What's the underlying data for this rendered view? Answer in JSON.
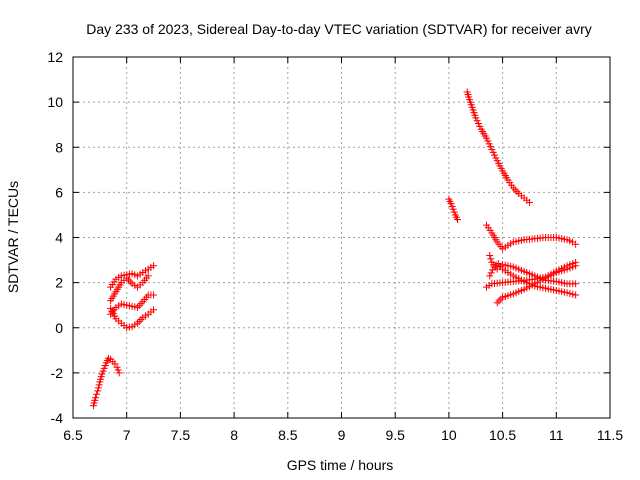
{
  "chart_data": {
    "type": "scatter",
    "title": "Day 233 of 2023, Sidereal Day-to-day VTEC variation (SDTVAR) for receiver avry",
    "xlabel": "GPS time / hours",
    "ylabel": "SDTVAR / TECUs",
    "xlim": [
      6.5,
      11.5
    ],
    "ylim": [
      -4,
      12
    ],
    "xticks": [
      6.5,
      7,
      7.5,
      8,
      8.5,
      9,
      9.5,
      10,
      10.5,
      11,
      11.5
    ],
    "xtick_labels": [
      "6.5",
      "7",
      "7.5",
      "8",
      "8.5",
      "9",
      "9.5",
      "10",
      "10.5",
      "11",
      "11.5"
    ],
    "yticks": [
      -4,
      -2,
      0,
      2,
      4,
      6,
      8,
      10,
      12
    ],
    "ytick_labels": [
      "-4",
      "-2",
      "0",
      "2",
      "4",
      "6",
      "8",
      "10",
      "12"
    ],
    "grid": true,
    "marker": "plus",
    "marker_color": "#ff0000",
    "segments": [
      {
        "x": [
          6.69,
          6.71,
          6.73,
          6.75,
          6.77,
          6.79,
          6.81,
          6.83,
          6.85,
          6.87,
          6.89,
          6.91,
          6.93
        ],
        "y": [
          -3.45,
          -3.1,
          -2.8,
          -2.4,
          -2.05,
          -1.8,
          -1.55,
          -1.35,
          -1.4,
          -1.5,
          -1.6,
          -1.75,
          -2.0
        ]
      },
      {
        "x": [
          6.85,
          6.9,
          6.95,
          7.0,
          7.05,
          7.1,
          7.15,
          7.2,
          7.25
        ],
        "y": [
          1.8,
          2.15,
          2.3,
          2.35,
          2.4,
          2.3,
          2.45,
          2.6,
          2.75
        ]
      },
      {
        "x": [
          6.85,
          6.9,
          6.95,
          7.0,
          7.05,
          7.1,
          7.15,
          7.2
        ],
        "y": [
          1.2,
          1.6,
          2.0,
          2.2,
          1.95,
          1.8,
          2.0,
          2.3
        ]
      },
      {
        "x": [
          6.85,
          6.9,
          6.95,
          7.0,
          7.05,
          7.1,
          7.15,
          7.2,
          7.25
        ],
        "y": [
          0.6,
          0.9,
          1.05,
          1.0,
          0.95,
          0.9,
          1.15,
          1.45,
          1.45
        ]
      },
      {
        "x": [
          6.85,
          6.9,
          6.95,
          7.0,
          7.05,
          7.1,
          7.15,
          7.2,
          7.25
        ],
        "y": [
          0.85,
          0.4,
          0.2,
          0.0,
          0.05,
          0.2,
          0.45,
          0.6,
          0.8
        ]
      },
      {
        "x": [
          10.0,
          10.02,
          10.04,
          10.06,
          10.08
        ],
        "y": [
          5.7,
          5.5,
          5.25,
          5.0,
          4.8
        ]
      },
      {
        "x": [
          10.17,
          10.2,
          10.25,
          10.3,
          10.35,
          10.4,
          10.45,
          10.5,
          10.55,
          10.6,
          10.65,
          10.7,
          10.75
        ],
        "y": [
          10.45,
          10.0,
          9.3,
          8.8,
          8.4,
          7.9,
          7.4,
          6.95,
          6.55,
          6.2,
          5.95,
          5.75,
          5.55
        ]
      },
      {
        "x": [
          10.35,
          10.4,
          10.45,
          10.5,
          10.55,
          10.6,
          10.7,
          10.8,
          10.9,
          11.0,
          11.05,
          11.1,
          11.15,
          11.18
        ],
        "y": [
          4.55,
          4.2,
          3.8,
          3.5,
          3.65,
          3.8,
          3.9,
          3.95,
          4.0,
          4.0,
          3.95,
          3.9,
          3.8,
          3.7
        ]
      },
      {
        "x": [
          10.38,
          10.4,
          10.45,
          10.5,
          10.6,
          10.7,
          10.8,
          10.9,
          11.0,
          11.1,
          11.18
        ],
        "y": [
          3.2,
          2.9,
          2.6,
          2.8,
          2.7,
          2.5,
          2.3,
          2.1,
          2.05,
          1.95,
          1.95
        ]
      },
      {
        "x": [
          10.38,
          10.42,
          10.46,
          10.5,
          10.6,
          10.7,
          10.8,
          10.9,
          11.0,
          11.1,
          11.18
        ],
        "y": [
          2.3,
          2.7,
          2.85,
          2.6,
          2.3,
          2.05,
          1.85,
          1.75,
          1.65,
          1.55,
          1.45
        ]
      },
      {
        "x": [
          10.35,
          10.4,
          10.5,
          10.6,
          10.7,
          10.8,
          10.9,
          11.0,
          11.1,
          11.18
        ],
        "y": [
          1.8,
          1.95,
          2.0,
          2.05,
          2.1,
          2.15,
          2.25,
          2.5,
          2.75,
          2.9
        ]
      },
      {
        "x": [
          10.45,
          10.5,
          10.6,
          10.7,
          10.8,
          10.9,
          11.0,
          11.1,
          11.18
        ],
        "y": [
          1.1,
          1.35,
          1.5,
          1.7,
          1.95,
          2.2,
          2.45,
          2.6,
          2.75
        ]
      }
    ]
  }
}
